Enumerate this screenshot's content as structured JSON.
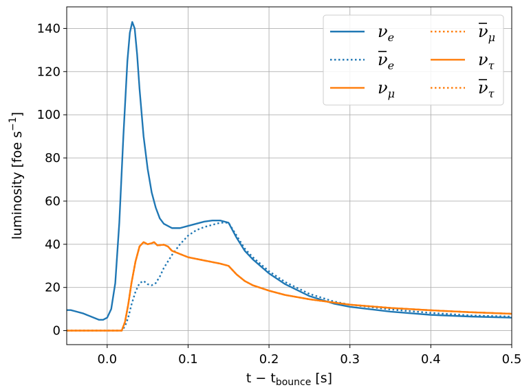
{
  "chart_data": {
    "type": "line",
    "xlabel": {
      "prefix": "t − t",
      "sub": "bounce",
      "suffix": " [s]"
    },
    "ylabel": {
      "prefix": "luminosity [foe s",
      "sup": "−1",
      "suffix": "]"
    },
    "xlim": [
      -0.05,
      0.5
    ],
    "ylim": [
      -6.5,
      150
    ],
    "xticks": [
      0.0,
      0.1,
      0.2,
      0.3,
      0.4,
      0.5
    ],
    "xtick_labels": [
      "0.0",
      "0.1",
      "0.2",
      "0.3",
      "0.4",
      "0.5"
    ],
    "yticks": [
      0,
      20,
      40,
      60,
      80,
      100,
      120,
      140
    ],
    "ytick_labels": [
      "0",
      "20",
      "40",
      "60",
      "80",
      "100",
      "120",
      "140"
    ],
    "grid": true,
    "legend_position": "top-right",
    "legend_columns": 2,
    "colors": {
      "blue": "#1f77b4",
      "orange": "#ff7f0e"
    },
    "series": [
      {
        "name": "ν_e",
        "base": "ν",
        "bar": false,
        "sub": "e",
        "color": "#1f77b4",
        "dash": "solid",
        "x": [
          -0.05,
          -0.045,
          -0.04,
          -0.03,
          -0.02,
          -0.01,
          -0.005,
          0.0,
          0.005,
          0.01,
          0.015,
          0.02,
          0.025,
          0.028,
          0.031,
          0.034,
          0.037,
          0.04,
          0.045,
          0.05,
          0.055,
          0.06,
          0.065,
          0.07,
          0.08,
          0.09,
          0.1,
          0.11,
          0.12,
          0.13,
          0.14,
          0.15,
          0.16,
          0.17,
          0.18,
          0.2,
          0.22,
          0.25,
          0.28,
          0.3,
          0.35,
          0.4,
          0.45,
          0.5
        ],
        "y": [
          9.5,
          9.5,
          9.0,
          8.0,
          6.5,
          5.0,
          5.0,
          6.0,
          10.0,
          22.0,
          50.0,
          90.0,
          125.0,
          138.0,
          143.0,
          140.0,
          128.0,
          112.0,
          90.0,
          75.0,
          64.0,
          57.0,
          52.0,
          49.5,
          47.5,
          47.5,
          48.5,
          49.5,
          50.5,
          51.0,
          51.0,
          50.0,
          43.0,
          37.0,
          33.0,
          26.5,
          21.5,
          16.0,
          12.5,
          11.0,
          8.8,
          7.3,
          6.5,
          6.0
        ]
      },
      {
        "name": "ν̄_e",
        "base": "ν",
        "bar": true,
        "sub": "e",
        "color": "#1f77b4",
        "dash": "dotted",
        "x": [
          -0.05,
          0.0,
          0.018,
          0.022,
          0.026,
          0.03,
          0.035,
          0.04,
          0.045,
          0.05,
          0.055,
          0.06,
          0.065,
          0.07,
          0.08,
          0.09,
          0.1,
          0.11,
          0.12,
          0.13,
          0.14,
          0.15,
          0.16,
          0.17,
          0.18,
          0.2,
          0.22,
          0.25,
          0.28,
          0.3,
          0.35,
          0.4,
          0.45,
          0.5
        ],
        "y": [
          0.0,
          0.0,
          0.0,
          2.0,
          6.0,
          12.0,
          18.0,
          22.0,
          23.0,
          21.5,
          21.0,
          22.0,
          25.0,
          29.0,
          35.0,
          40.0,
          44.0,
          46.5,
          48.0,
          49.0,
          50.0,
          50.0,
          44.0,
          38.0,
          34.0,
          27.5,
          22.5,
          17.0,
          13.5,
          12.0,
          9.8,
          8.2,
          7.0,
          6.5
        ]
      },
      {
        "name": "ν_μ",
        "base": "ν",
        "bar": false,
        "sub": "μ",
        "color": "#ff7f0e",
        "dash": "solid",
        "x": [
          -0.05,
          0.0,
          0.018,
          0.022,
          0.026,
          0.03,
          0.035,
          0.04,
          0.045,
          0.05,
          0.055,
          0.058,
          0.062,
          0.07,
          0.075,
          0.08,
          0.09,
          0.1,
          0.12,
          0.14,
          0.15,
          0.16,
          0.17,
          0.18,
          0.2,
          0.22,
          0.25,
          0.28,
          0.3,
          0.35,
          0.4,
          0.45,
          0.5
        ],
        "y": [
          0.0,
          0.0,
          0.0,
          4.0,
          12.0,
          22.0,
          32.0,
          39.0,
          41.0,
          40.0,
          40.5,
          41.0,
          39.5,
          39.8,
          39.0,
          37.0,
          35.5,
          34.0,
          32.5,
          31.0,
          30.0,
          26.0,
          23.0,
          21.0,
          18.5,
          16.5,
          14.5,
          13.0,
          12.0,
          10.5,
          9.4,
          8.5,
          7.8
        ]
      },
      {
        "name": "ν̄_μ",
        "base": "ν",
        "bar": true,
        "sub": "μ",
        "color": "#ff7f0e",
        "dash": "dotted",
        "x": [
          -0.05,
          0.0,
          0.018,
          0.022,
          0.026,
          0.03,
          0.035,
          0.04,
          0.045,
          0.05,
          0.055,
          0.058,
          0.062,
          0.07,
          0.075,
          0.08,
          0.09,
          0.1,
          0.12,
          0.14,
          0.15,
          0.16,
          0.17,
          0.18,
          0.2,
          0.22,
          0.25,
          0.28,
          0.3,
          0.35,
          0.4,
          0.45,
          0.5
        ],
        "y": [
          0.0,
          0.0,
          0.0,
          4.0,
          12.0,
          22.0,
          32.0,
          39.0,
          41.0,
          40.0,
          40.5,
          41.0,
          39.5,
          39.8,
          39.0,
          37.0,
          35.5,
          34.0,
          32.5,
          31.0,
          30.0,
          26.0,
          23.0,
          21.0,
          18.5,
          16.5,
          14.5,
          13.0,
          12.0,
          10.5,
          9.4,
          8.5,
          7.8
        ]
      },
      {
        "name": "ν_τ",
        "base": "ν",
        "bar": false,
        "sub": "τ",
        "color": "#ff7f0e",
        "dash": "solid",
        "x": [
          -0.05,
          0.0,
          0.018,
          0.022,
          0.026,
          0.03,
          0.035,
          0.04,
          0.045,
          0.05,
          0.055,
          0.058,
          0.062,
          0.07,
          0.075,
          0.08,
          0.09,
          0.1,
          0.12,
          0.14,
          0.15,
          0.16,
          0.17,
          0.18,
          0.2,
          0.22,
          0.25,
          0.28,
          0.3,
          0.35,
          0.4,
          0.45,
          0.5
        ],
        "y": [
          0.0,
          0.0,
          0.0,
          4.0,
          12.0,
          22.0,
          32.0,
          39.0,
          41.0,
          40.0,
          40.5,
          41.0,
          39.5,
          39.8,
          39.0,
          37.0,
          35.5,
          34.0,
          32.5,
          31.0,
          30.0,
          26.0,
          23.0,
          21.0,
          18.5,
          16.5,
          14.5,
          13.0,
          12.0,
          10.5,
          9.4,
          8.5,
          7.8
        ]
      },
      {
        "name": "ν̄_τ",
        "base": "ν",
        "bar": true,
        "sub": "τ",
        "color": "#ff7f0e",
        "dash": "dotted",
        "x": [
          -0.05,
          0.0,
          0.018,
          0.022,
          0.026,
          0.03,
          0.035,
          0.04,
          0.045,
          0.05,
          0.055,
          0.058,
          0.062,
          0.07,
          0.075,
          0.08,
          0.09,
          0.1,
          0.12,
          0.14,
          0.15,
          0.16,
          0.17,
          0.18,
          0.2,
          0.22,
          0.25,
          0.28,
          0.3,
          0.35,
          0.4,
          0.45,
          0.5
        ],
        "y": [
          0.0,
          0.0,
          0.0,
          4.0,
          12.0,
          22.0,
          32.0,
          39.0,
          41.0,
          40.0,
          40.5,
          41.0,
          39.5,
          39.8,
          39.0,
          37.0,
          35.5,
          34.0,
          32.5,
          31.0,
          30.0,
          26.0,
          23.0,
          21.0,
          18.5,
          16.5,
          14.5,
          13.0,
          12.0,
          10.5,
          9.4,
          8.5,
          7.8
        ]
      }
    ]
  }
}
